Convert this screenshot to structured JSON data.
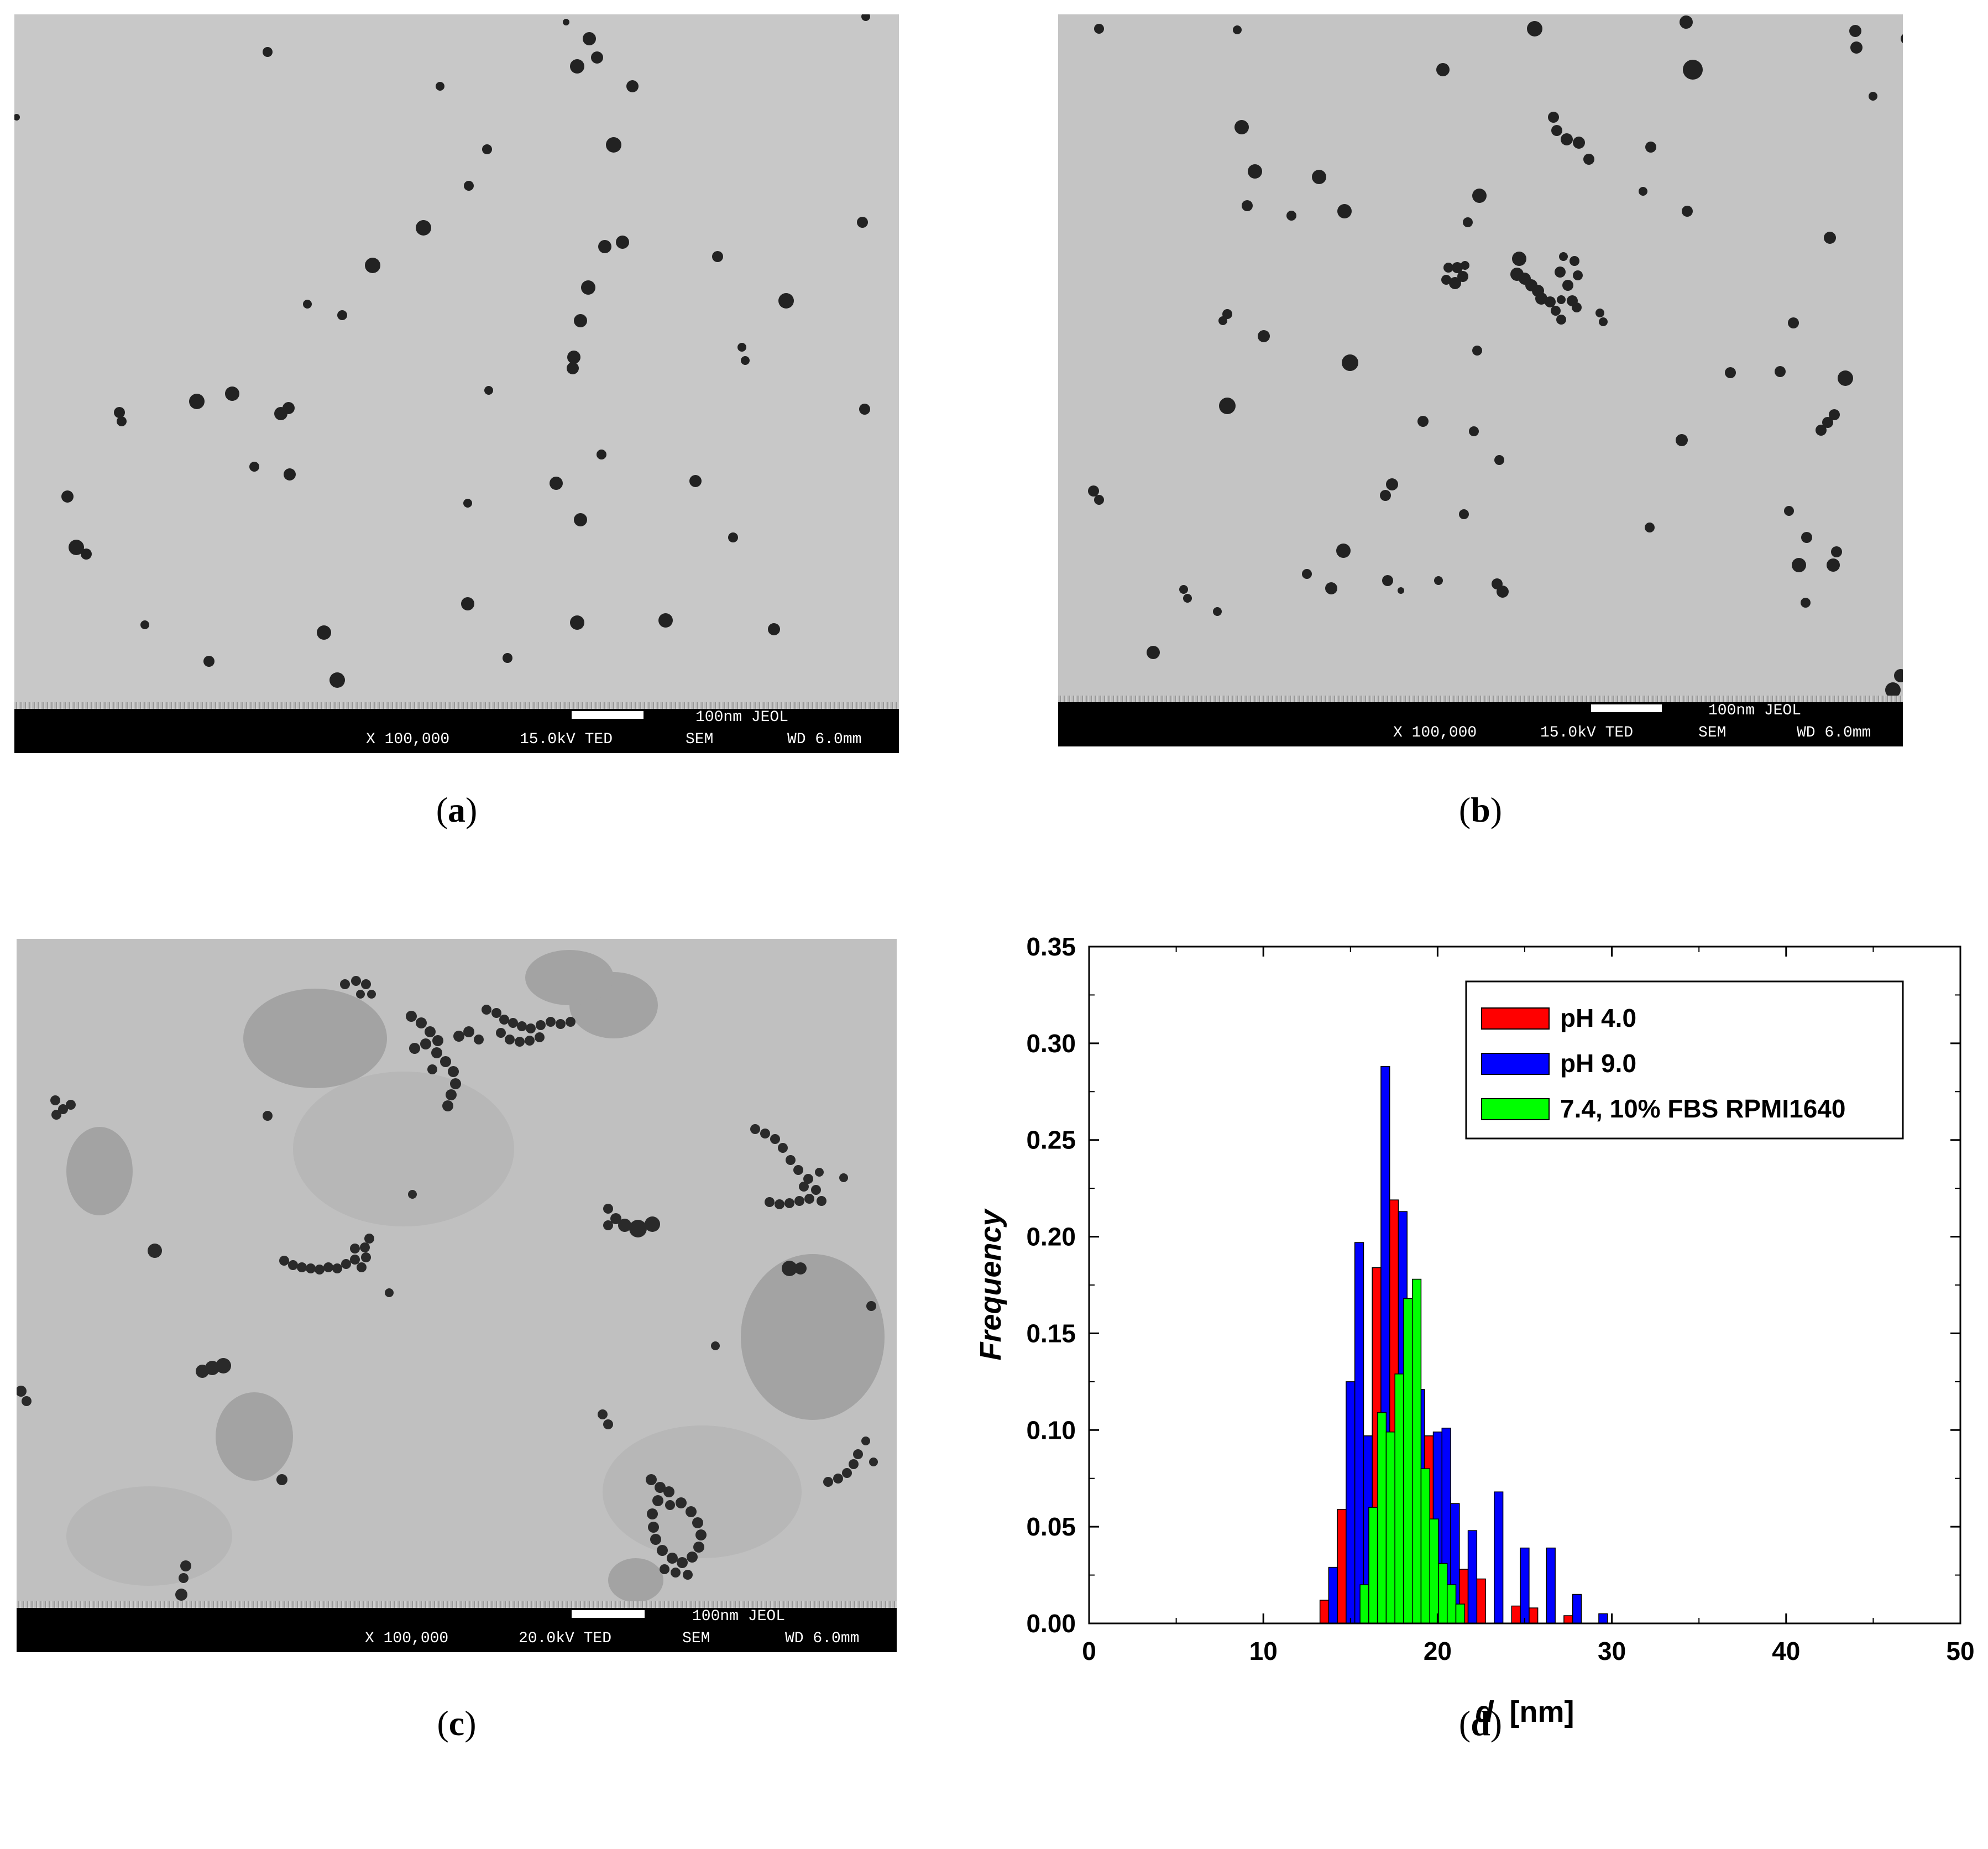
{
  "panels": {
    "a": {
      "label": "a",
      "sem": {
        "mag": "X 100,000",
        "kv": "15.0kV TED",
        "mode": "SEM",
        "wd": "WD 6.0mm",
        "scale": "100nm JEOL"
      }
    },
    "b": {
      "label": "b",
      "sem": {
        "mag": "X 100,000",
        "kv": "15.0kV TED",
        "mode": "SEM",
        "wd": "WD 6.0mm",
        "scale": "100nm JEOL"
      }
    },
    "c": {
      "label": "c",
      "sem": {
        "mag": "X 100,000",
        "kv": "20.0kV TED",
        "mode": "SEM",
        "wd": "WD 6.0mm",
        "scale": "100nm JEOL"
      }
    },
    "d": {
      "label": "d"
    }
  },
  "colors": {
    "ph4": "#ff0000",
    "ph9": "#0000ff",
    "fbs": "#00ff00",
    "sem_bg": "#c8c8c8"
  },
  "chart_data": {
    "type": "bar",
    "xlabel_italic": "d",
    "xlabel_unit": "[nm]",
    "ylabel": "Frequency",
    "xlim": [
      0,
      50
    ],
    "ylim": [
      0,
      0.35
    ],
    "xticks": [
      "0",
      "10",
      "20",
      "30",
      "40",
      "50"
    ],
    "yticks": [
      "0.00",
      "0.05",
      "0.10",
      "0.15",
      "0.20",
      "0.25",
      "0.30",
      "0.35"
    ],
    "legend_position": "top-right",
    "series": [
      {
        "name": "pH 4.0",
        "color": "#ff0000",
        "x": [
          13.5,
          14.5,
          16.5,
          17.5,
          18.5,
          19.5,
          20.5,
          21.5,
          22.5,
          24.5,
          25.5,
          27.5
        ],
        "values": [
          0.012,
          0.059,
          0.184,
          0.219,
          0.141,
          0.097,
          0.065,
          0.028,
          0.023,
          0.009,
          0.008,
          0.004
        ]
      },
      {
        "name": "pH 9.0",
        "color": "#0000ff",
        "x": [
          14.0,
          15.0,
          15.5,
          16.0,
          17.0,
          18.0,
          18.5,
          19.0,
          20.0,
          20.5,
          21.0,
          22.0,
          23.5,
          25.0,
          26.5,
          28.0,
          29.5
        ],
        "values": [
          0.029,
          0.125,
          0.197,
          0.097,
          0.288,
          0.213,
          0.145,
          0.121,
          0.099,
          0.101,
          0.062,
          0.048,
          0.068,
          0.039,
          0.039,
          0.015,
          0.005
        ]
      },
      {
        "name": "7.4, 10% FBS RPMI1640",
        "color": "#00ff00",
        "x": [
          15.8,
          16.3,
          16.8,
          17.3,
          17.8,
          18.3,
          18.8,
          19.3,
          19.8,
          20.3,
          20.8,
          21.3
        ],
        "values": [
          0.02,
          0.06,
          0.109,
          0.099,
          0.129,
          0.168,
          0.178,
          0.08,
          0.054,
          0.031,
          0.02,
          0.01
        ]
      }
    ]
  }
}
